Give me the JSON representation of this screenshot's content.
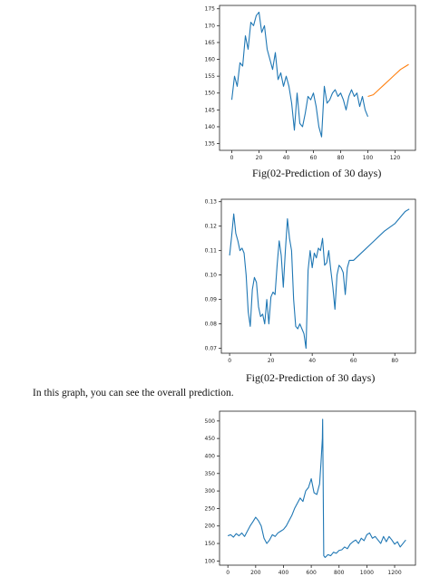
{
  "captions": {
    "fig1": "Fig(02-Prediction of 30 days)",
    "fig2": "Fig(02-Prediction of 30 days)",
    "body": "In this graph, you can see the overall prediction."
  },
  "colors": {
    "series_blue": "#1f77b4",
    "series_orange": "#ff7f0e"
  },
  "chart_data": [
    {
      "type": "line",
      "xlim": [
        -9,
        135
      ],
      "ylim": [
        133,
        176
      ],
      "xticks": [
        0,
        20,
        40,
        60,
        80,
        100,
        120
      ],
      "yticks": [
        135,
        140,
        145,
        150,
        155,
        160,
        165,
        170,
        175
      ],
      "series": [
        {
          "color": "#1f77b4",
          "x": [
            0,
            2,
            4,
            6,
            8,
            10,
            12,
            14,
            16,
            18,
            20,
            22,
            24,
            26,
            28,
            30,
            32,
            34,
            36,
            38,
            40,
            42,
            44,
            46,
            48,
            50,
            52,
            54,
            56,
            58,
            60,
            62,
            64,
            66,
            68,
            70,
            72,
            74,
            76,
            78,
            80,
            82,
            84,
            86,
            88,
            90,
            92,
            94,
            96,
            98,
            100
          ],
          "y": [
            148,
            155,
            152,
            159,
            158,
            167,
            163,
            171,
            170,
            173,
            174,
            168,
            170,
            163,
            160,
            157,
            162,
            154,
            156,
            152,
            155,
            152,
            147,
            139,
            150,
            141,
            140,
            144,
            149,
            148,
            150,
            146,
            140,
            137,
            152,
            147,
            148,
            150,
            151,
            149,
            150,
            148,
            145,
            149,
            151,
            149,
            150,
            146,
            149,
            145,
            143
          ]
        },
        {
          "color": "#ff7f0e",
          "x": [
            100,
            104,
            108,
            112,
            116,
            120,
            124,
            128,
            130
          ],
          "y": [
            149,
            149.5,
            151,
            152.5,
            154,
            155.5,
            157,
            158,
            158.5
          ]
        }
      ]
    },
    {
      "type": "line",
      "xlim": [
        -4,
        90
      ],
      "ylim": [
        0.068,
        0.131
      ],
      "xticks": [
        0,
        20,
        40,
        60,
        80
      ],
      "yticks": [
        0.07,
        0.08,
        0.09,
        0.1,
        0.11,
        0.12,
        0.13
      ],
      "series": [
        {
          "color": "#1f77b4",
          "x": [
            0,
            1,
            2,
            3,
            4,
            5,
            6,
            7,
            8,
            9,
            10,
            11,
            12,
            13,
            14,
            15,
            16,
            17,
            18,
            19,
            20,
            21,
            22,
            23,
            24,
            25,
            26,
            27,
            28,
            29,
            30,
            31,
            32,
            33,
            34,
            35,
            36,
            37,
            38,
            39,
            40,
            41,
            42,
            43,
            44,
            45,
            46,
            47,
            48,
            49,
            50,
            51,
            52,
            53,
            54,
            55,
            56,
            57,
            58,
            60,
            65,
            70,
            75,
            80,
            85,
            87
          ],
          "y": [
            0.108,
            0.116,
            0.125,
            0.117,
            0.114,
            0.11,
            0.111,
            0.109,
            0.1,
            0.085,
            0.079,
            0.094,
            0.099,
            0.097,
            0.087,
            0.083,
            0.084,
            0.08,
            0.09,
            0.08,
            0.091,
            0.093,
            0.092,
            0.104,
            0.114,
            0.108,
            0.095,
            0.11,
            0.123,
            0.115,
            0.11,
            0.09,
            0.079,
            0.078,
            0.08,
            0.078,
            0.076,
            0.07,
            0.102,
            0.11,
            0.103,
            0.109,
            0.107,
            0.111,
            0.11,
            0.115,
            0.104,
            0.105,
            0.11,
            0.102,
            0.095,
            0.086,
            0.1,
            0.104,
            0.103,
            0.101,
            0.092,
            0.103,
            0.106,
            0.106,
            0.11,
            0.114,
            0.118,
            0.121,
            0.126,
            0.127
          ]
        }
      ]
    },
    {
      "type": "line",
      "xlim": [
        -60,
        1350
      ],
      "ylim": [
        88,
        528
      ],
      "xticks": [
        0,
        200,
        400,
        600,
        800,
        1000,
        1200
      ],
      "yticks": [
        100,
        150,
        200,
        250,
        300,
        350,
        400,
        450,
        500
      ],
      "series": [
        {
          "color": "#1f77b4",
          "x": [
            0,
            20,
            40,
            60,
            80,
            100,
            120,
            140,
            160,
            180,
            200,
            220,
            240,
            260,
            280,
            300,
            320,
            340,
            360,
            380,
            400,
            420,
            440,
            460,
            480,
            500,
            520,
            540,
            560,
            580,
            600,
            620,
            640,
            660,
            670,
            680,
            682,
            690,
            700,
            720,
            740,
            760,
            780,
            800,
            820,
            840,
            860,
            880,
            900,
            920,
            940,
            960,
            980,
            1000,
            1020,
            1040,
            1060,
            1080,
            1100,
            1120,
            1140,
            1160,
            1180,
            1200,
            1220,
            1240,
            1260,
            1280
          ],
          "y": [
            172,
            175,
            168,
            178,
            172,
            180,
            170,
            185,
            200,
            212,
            225,
            215,
            200,
            165,
            150,
            160,
            175,
            170,
            180,
            185,
            190,
            200,
            215,
            230,
            250,
            265,
            280,
            270,
            300,
            310,
            335,
            295,
            290,
            320,
            380,
            450,
            505,
            115,
            110,
            118,
            115,
            125,
            122,
            130,
            132,
            140,
            135,
            148,
            155,
            160,
            150,
            165,
            158,
            175,
            180,
            165,
            170,
            160,
            150,
            170,
            155,
            170,
            160,
            148,
            155,
            140,
            150,
            160
          ]
        }
      ]
    }
  ]
}
